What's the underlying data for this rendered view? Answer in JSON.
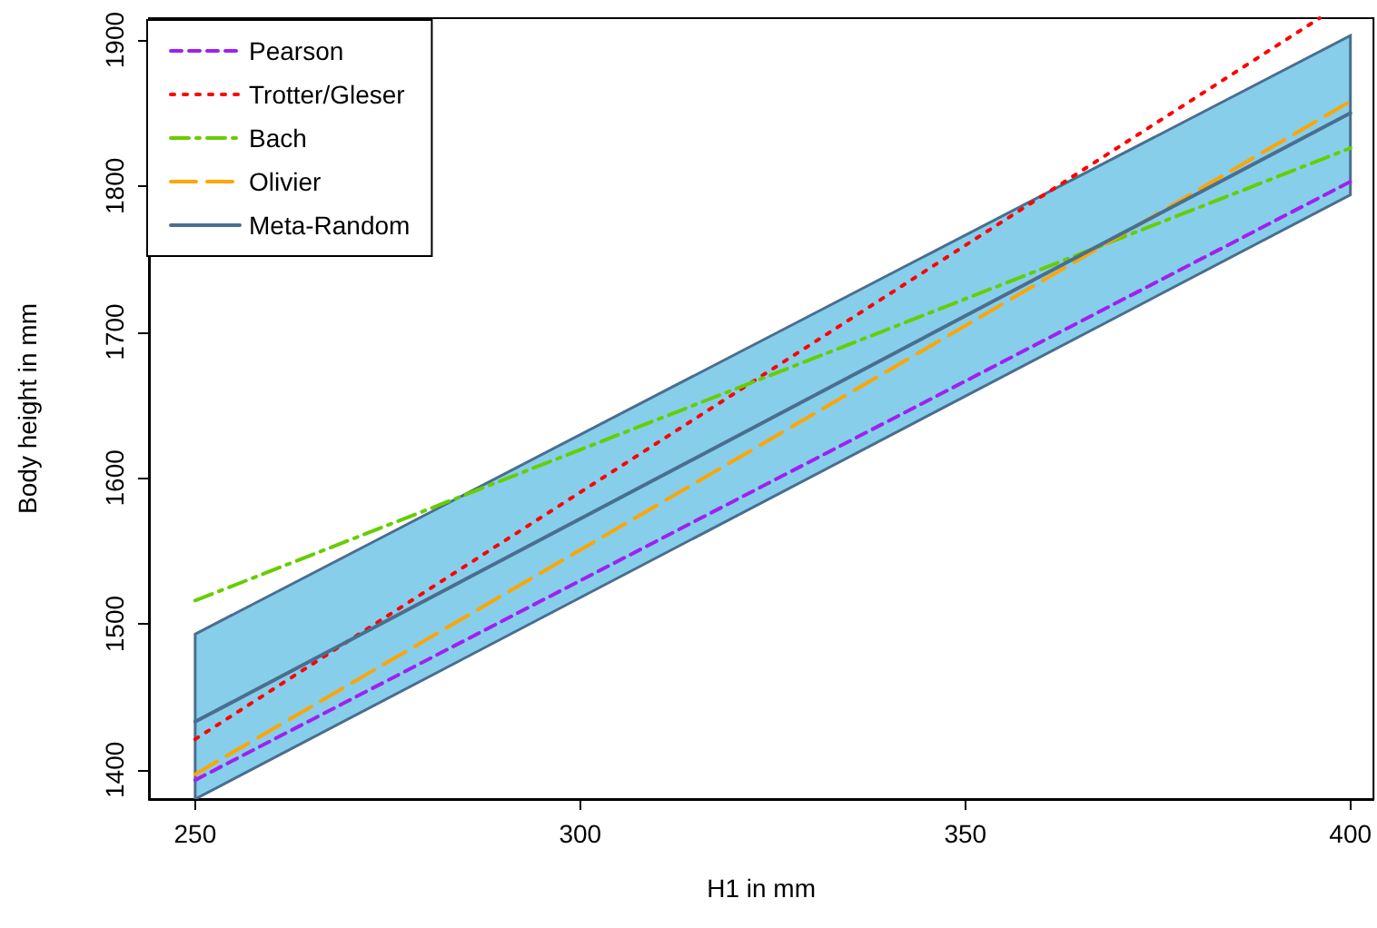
{
  "chart_data": {
    "type": "line",
    "xlabel": "H1 in mm",
    "ylabel": "Body height in mm",
    "x": [
      250,
      400
    ],
    "series": [
      {
        "name": "Pearson",
        "color": "#a020f0",
        "line_style": "dashed",
        "values": [
          1393,
          1803
        ]
      },
      {
        "name": "Trotter/Gleser",
        "color": "#ff0000",
        "line_style": "dotted",
        "x": [
          250,
          396
        ],
        "values": [
          1421,
          1915
        ]
      },
      {
        "name": "Bach",
        "color": "#66cd00",
        "line_style": "dashdot",
        "values": [
          1516,
          1826
        ]
      },
      {
        "name": "Olivier",
        "color": "#ffa500",
        "line_style": "longdash",
        "values": [
          1397,
          1858
        ]
      },
      {
        "name": "Meta-Random",
        "color": "#4a6e8e",
        "line_style": "solid",
        "values": [
          1433,
          1850
        ],
        "lower": [
          1380,
          1794
        ],
        "upper": [
          1493,
          1903
        ]
      }
    ],
    "xlim": [
      244,
      403
    ],
    "ylim": [
      1380,
      1915
    ],
    "xticks": [
      250,
      300,
      350,
      400
    ],
    "yticks": [
      1400,
      1500,
      1600,
      1700,
      1800,
      1900
    ],
    "grid": false,
    "legend": "top left",
    "marker": "none"
  }
}
